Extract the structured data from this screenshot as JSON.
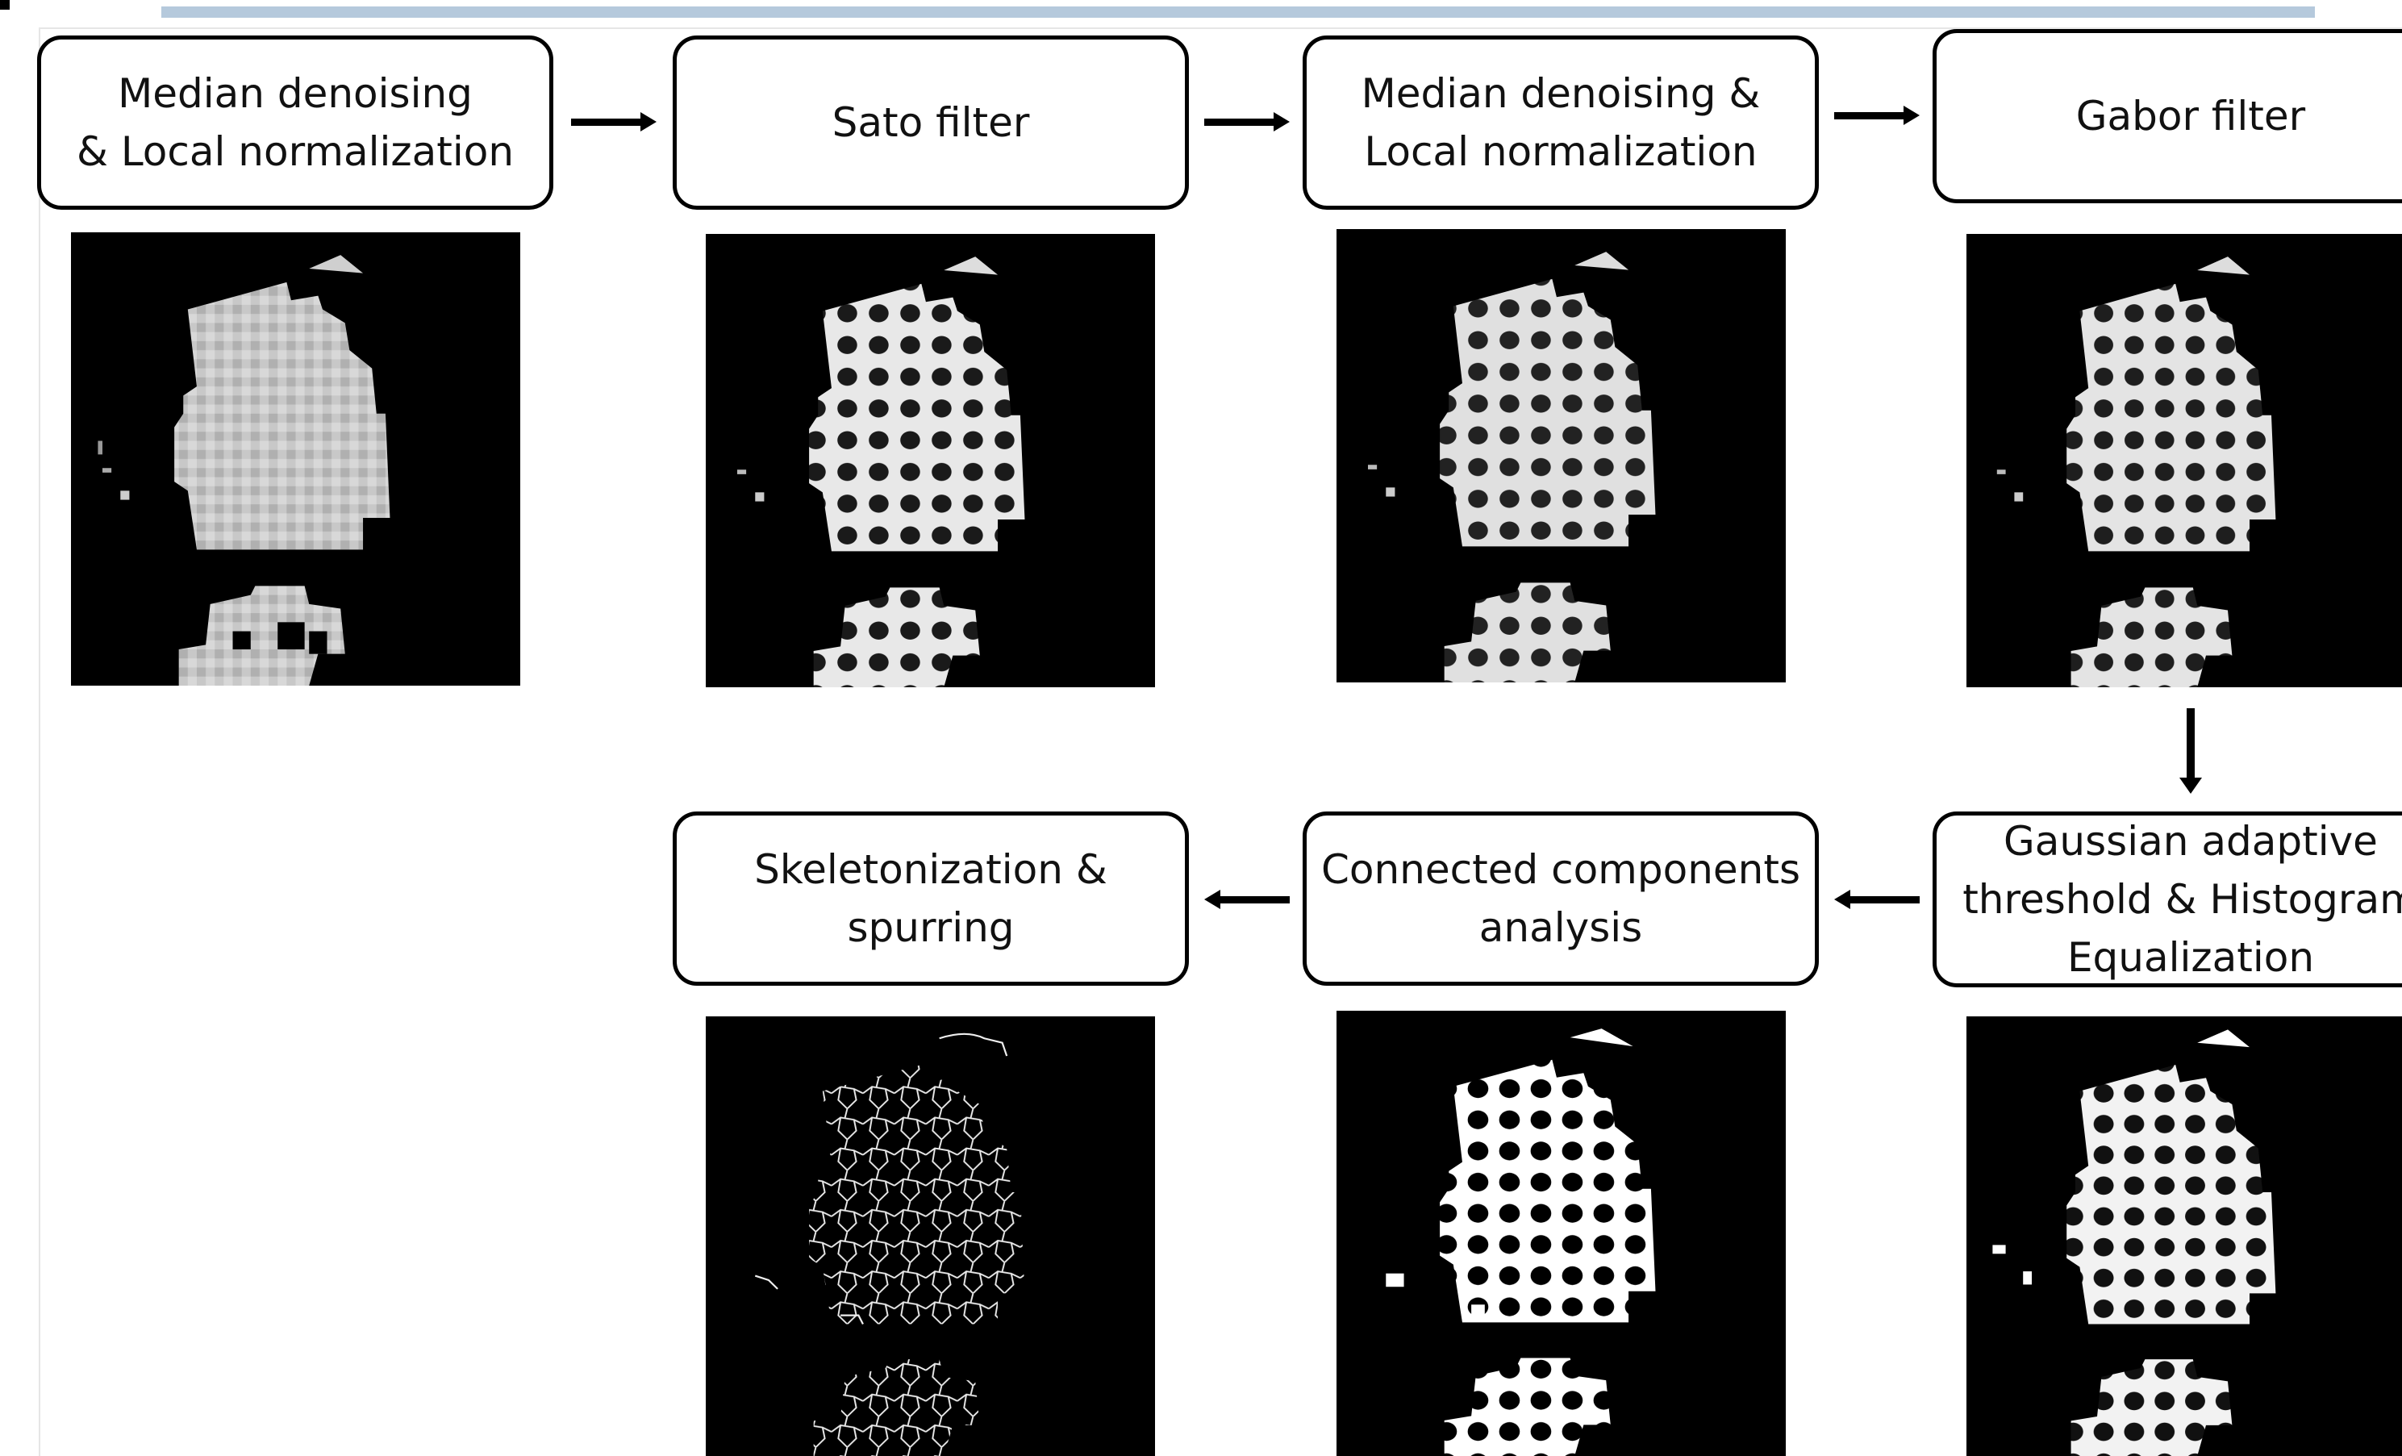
{
  "steps": {
    "s1": "Median denoising\n& Local normalization",
    "s2": "Sato filter",
    "s3": "Median denoising &\nLocal normalization",
    "s4": "Gabor filter",
    "s5": "Gaussian adaptive\nthreshold & Histogram\nEqualization",
    "s6": "Connected components\nanalysis",
    "s7": "Skeletonization &\nspurring"
  },
  "flow": [
    "s1",
    "s2",
    "s3",
    "s4",
    "s5",
    "s6",
    "s7"
  ],
  "colors": {
    "box_border": "#000000",
    "tile_bg": "#000000",
    "accent_bar": "#b5c9dc"
  }
}
